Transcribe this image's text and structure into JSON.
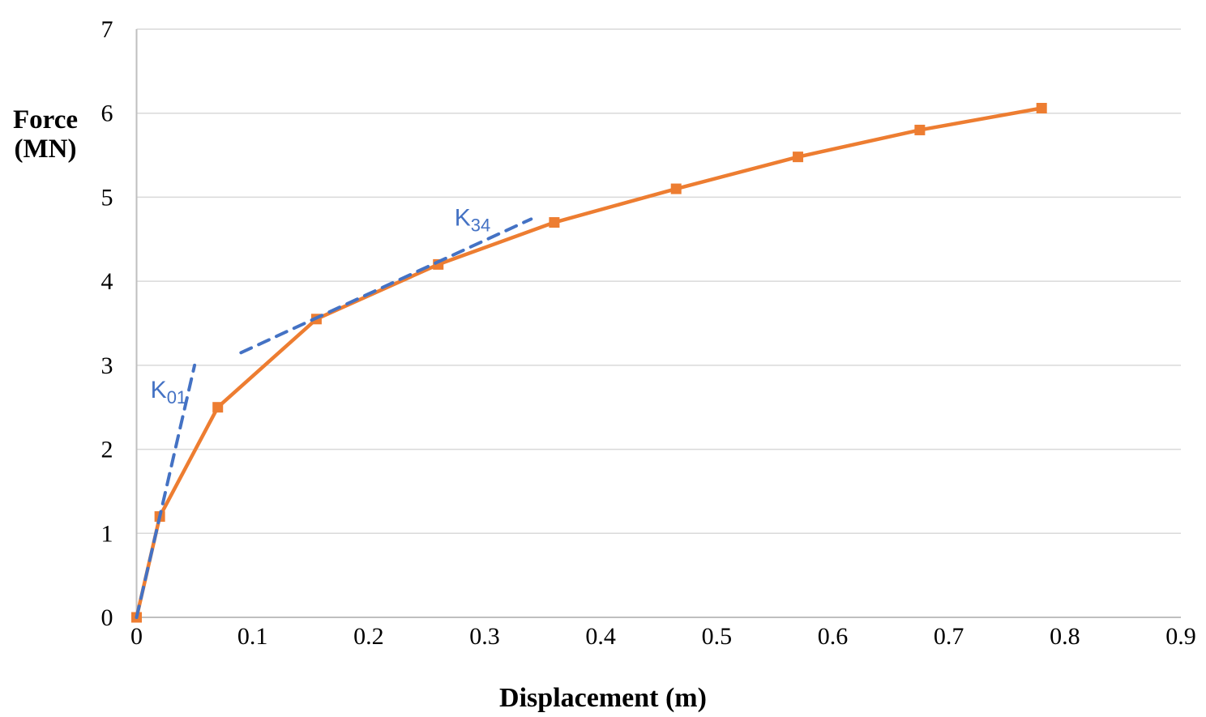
{
  "page": {
    "background": "#FFFFFF"
  },
  "chart_data": {
    "type": "line",
    "title": "",
    "xlabel": "Displacement (m)",
    "ylabel": "Force (MN)",
    "ylabel_lines": [
      "Force",
      "(MN)"
    ],
    "xlim": [
      0,
      0.9
    ],
    "ylim": [
      0,
      7
    ],
    "xticks": {
      "values": [
        0,
        0.1,
        0.2,
        0.3,
        0.4,
        0.5,
        0.6,
        0.7,
        0.8,
        0.9
      ],
      "labels": [
        "0",
        "0.1",
        "0.2",
        "0.3",
        "0.4",
        "0.5",
        "0.6",
        "0.7",
        "0.8",
        "0.9"
      ]
    },
    "yticks": {
      "values": [
        0,
        1,
        2,
        3,
        4,
        5,
        6,
        7
      ],
      "labels": [
        "0",
        "1",
        "2",
        "3",
        "4",
        "5",
        "6",
        "7"
      ]
    },
    "grid": {
      "horizontal": true,
      "vertical": false,
      "color": "#D9D9D9"
    },
    "axis_color": "#BFBFBF",
    "series": [
      {
        "name": "force-displacement-curve",
        "style": "solid",
        "marker": "square",
        "color": "#ED7D31",
        "points": [
          [
            0,
            0
          ],
          [
            0.02,
            1.2
          ],
          [
            0.07,
            2.5
          ],
          [
            0.155,
            3.55
          ],
          [
            0.26,
            4.2
          ],
          [
            0.36,
            4.7
          ],
          [
            0.465,
            5.1
          ],
          [
            0.57,
            5.48
          ],
          [
            0.675,
            5.8
          ],
          [
            0.78,
            6.06
          ]
        ]
      },
      {
        "name": "k01-stiffness-line",
        "style": "dashed",
        "marker": "none",
        "color": "#4472C4",
        "points": [
          [
            0,
            0
          ],
          [
            0.05,
            3.0
          ]
        ]
      },
      {
        "name": "k34-stiffness-line",
        "style": "dashed",
        "marker": "none",
        "color": "#4472C4",
        "points": [
          [
            0.09,
            3.15
          ],
          [
            0.34,
            4.74
          ]
        ]
      }
    ],
    "annotations": [
      {
        "text": "K",
        "subscript": "01",
        "x": 0.012,
        "y": 2.71,
        "color": "#4472C4"
      },
      {
        "text": "K",
        "subscript": "34",
        "x": 0.274,
        "y": 4.76,
        "color": "#4472C4"
      }
    ]
  }
}
